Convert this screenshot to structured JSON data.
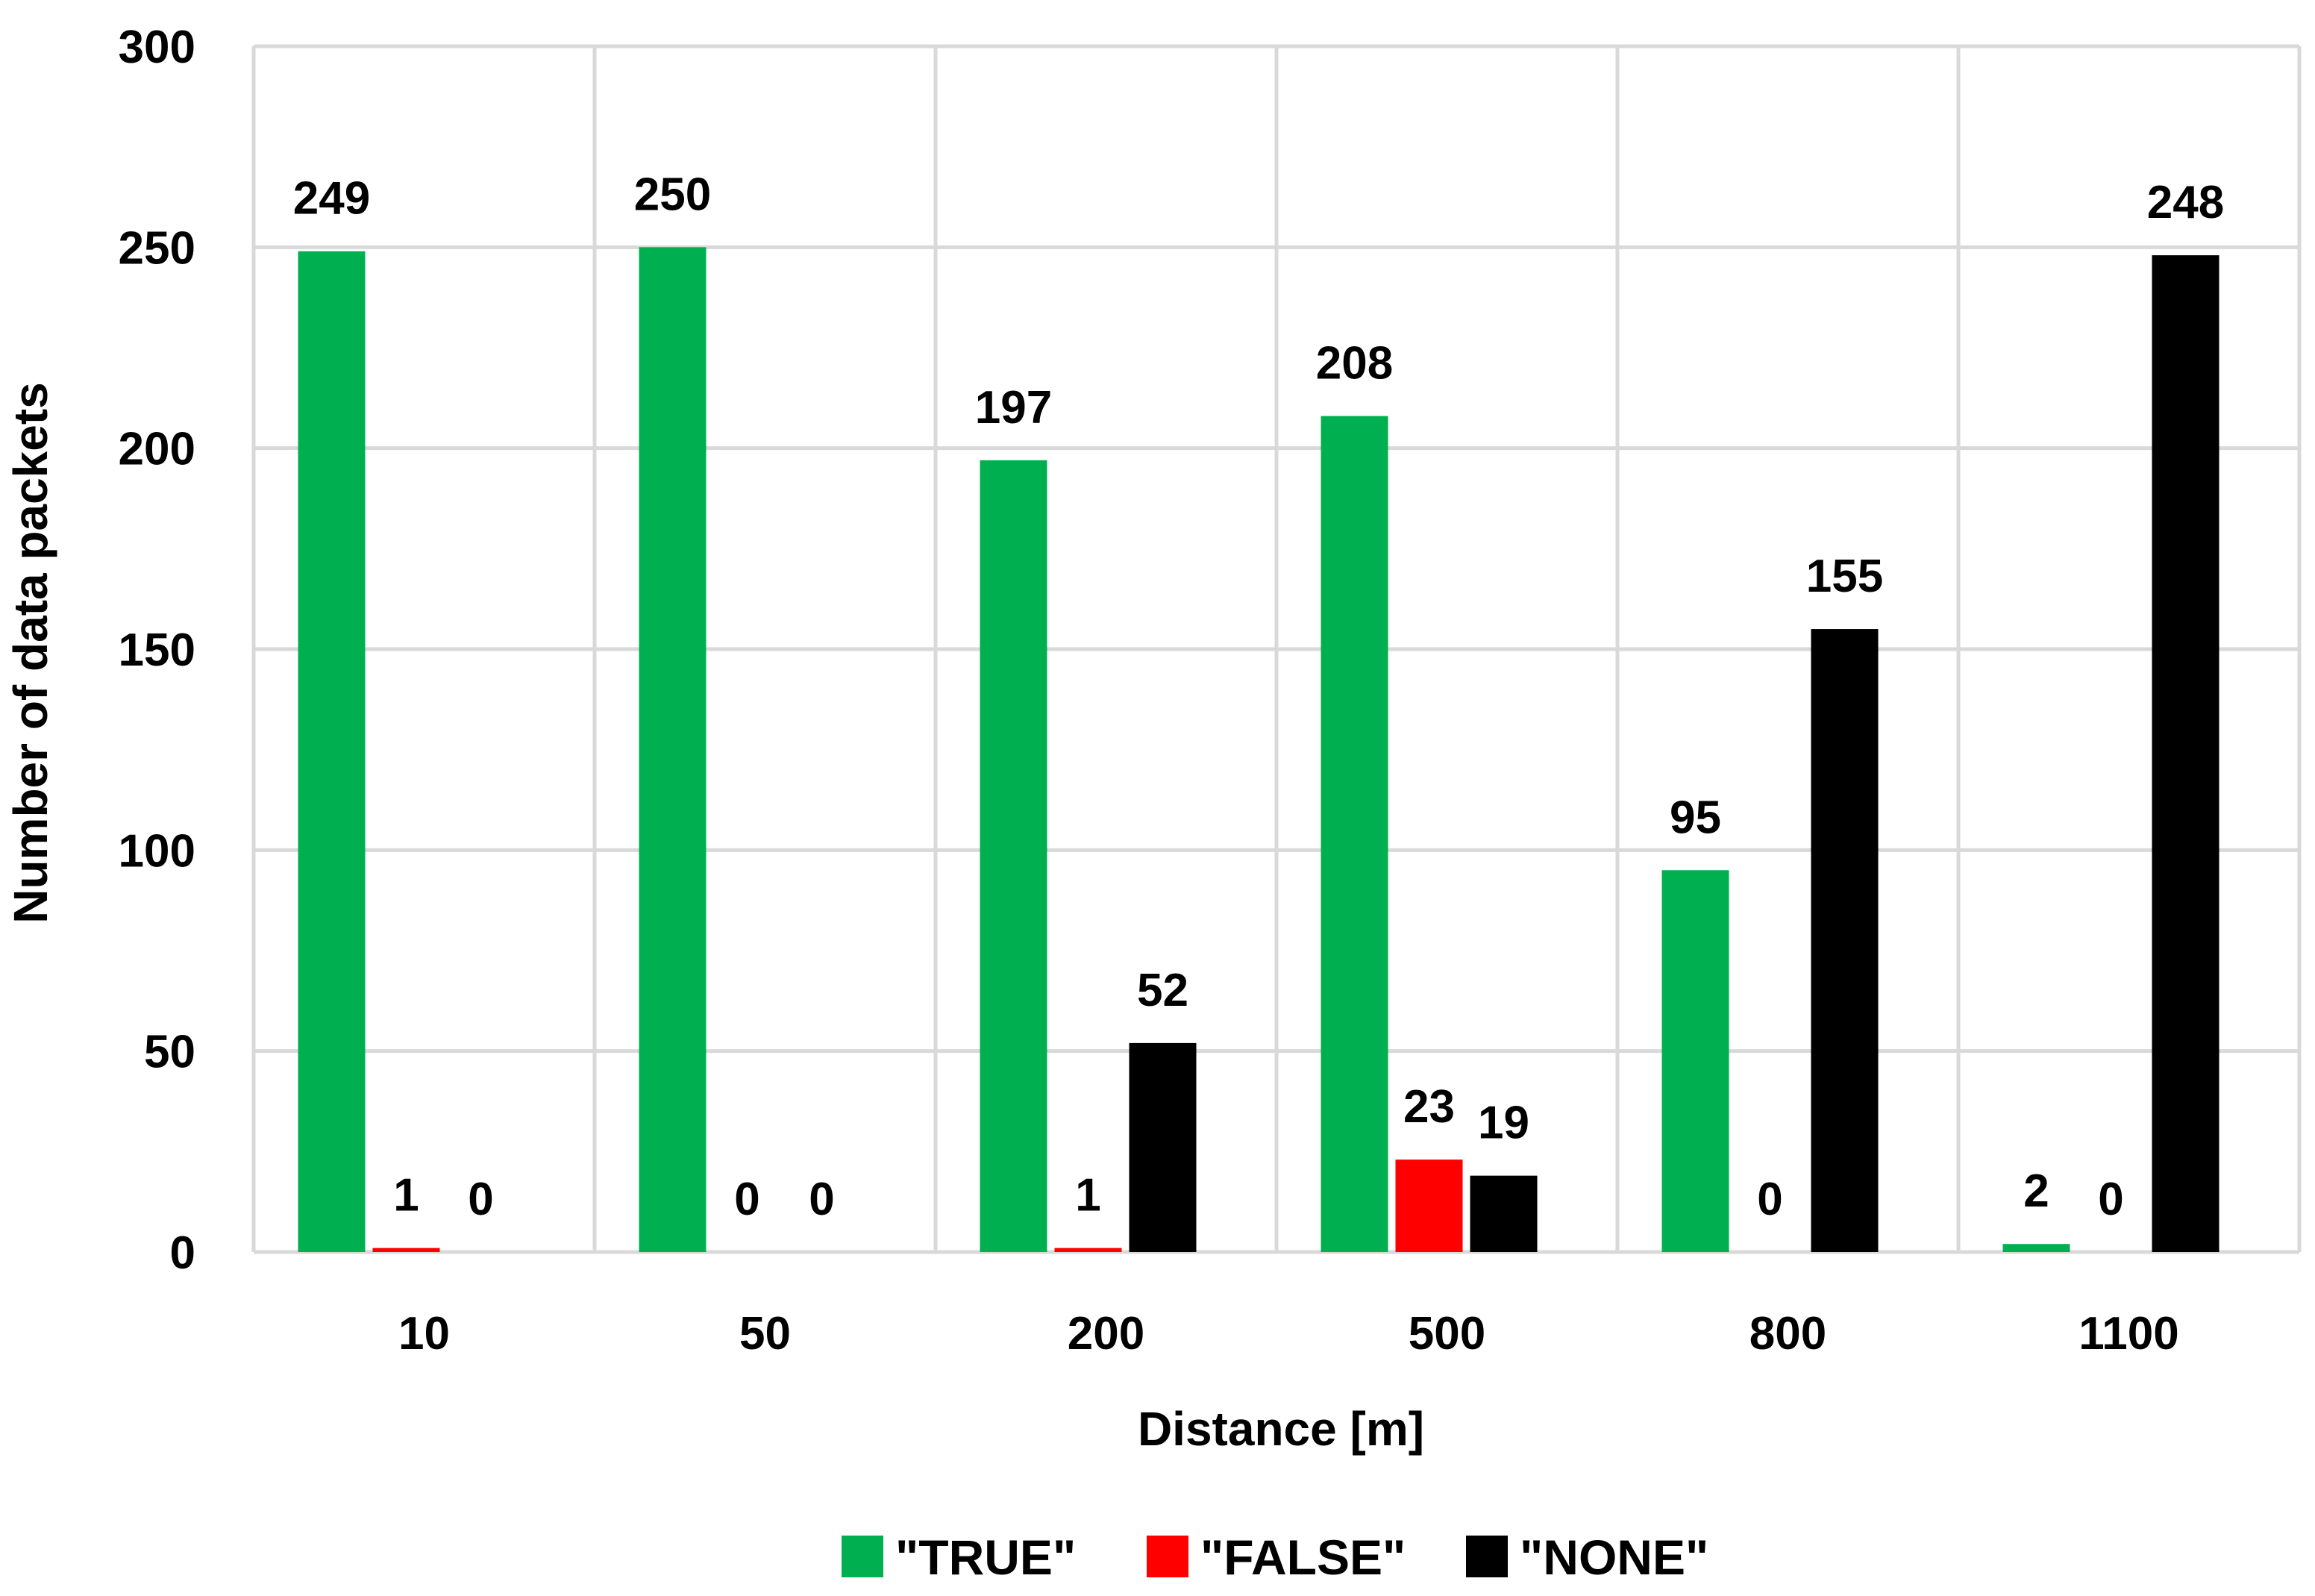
{
  "chart_data": {
    "type": "bar",
    "title": "",
    "xlabel": "Distance [m]",
    "ylabel": "Number of  data packets",
    "categories": [
      "10",
      "50",
      "200",
      "500",
      "800",
      "1100"
    ],
    "series": [
      {
        "name": "\"TRUE\"",
        "color": "#00b050",
        "values": [
          249,
          250,
          197,
          208,
          95,
          2
        ]
      },
      {
        "name": "\"FALSE\"",
        "color": "#ff0000",
        "values": [
          1,
          0,
          1,
          23,
          0,
          0
        ]
      },
      {
        "name": "\"NONE\"",
        "color": "#000000",
        "values": [
          0,
          0,
          52,
          19,
          155,
          248
        ]
      }
    ],
    "ylim": [
      0,
      300
    ],
    "yticks": [
      0,
      50,
      100,
      150,
      200,
      250,
      300
    ],
    "grid": true,
    "legend_position": "bottom"
  }
}
